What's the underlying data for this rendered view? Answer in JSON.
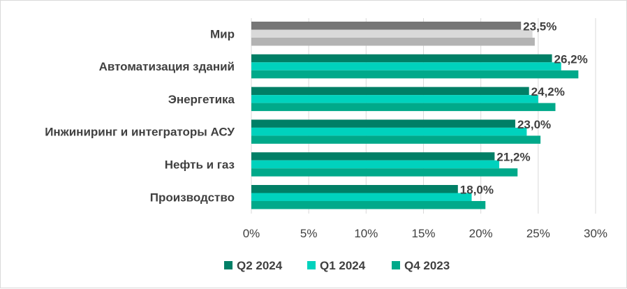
{
  "chart_data": {
    "type": "bar",
    "orientation": "horizontal",
    "categories": [
      "Мир",
      "Автоматизация зданий",
      "Энергетика",
      "Инжиниринг и интеграторы АСУ",
      "Нефть и газ",
      "Производство"
    ],
    "series": [
      {
        "name": "Q2 2024",
        "values": [
          23.5,
          26.2,
          24.2,
          23.0,
          21.2,
          18.0
        ]
      },
      {
        "name": "Q1 2024",
        "values": [
          24.5,
          27.0,
          25.0,
          24.0,
          21.6,
          19.2
        ]
      },
      {
        "name": "Q4 2023",
        "values": [
          24.7,
          28.5,
          26.5,
          25.2,
          23.2,
          20.4
        ]
      }
    ],
    "data_labels": [
      "23,5%",
      "26,2%",
      "24,2%",
      "23,0%",
      "21,2%",
      "18,0%"
    ],
    "x_ticks": [
      "0%",
      "5%",
      "10%",
      "15%",
      "20%",
      "25%",
      "30%"
    ],
    "xlim": [
      0,
      30
    ],
    "grid": "vertical",
    "legend": "bottom",
    "colors": {
      "Q2 2024": "#007f66",
      "Q1 2024": "#00d2bd",
      "Q4 2023": "#00a98a",
      "world_q2": "#767676",
      "world_q1": "#d9d9d9",
      "world_q4": "#b3b3b3",
      "grid": "#d9d9d9",
      "text": "#404040"
    }
  }
}
